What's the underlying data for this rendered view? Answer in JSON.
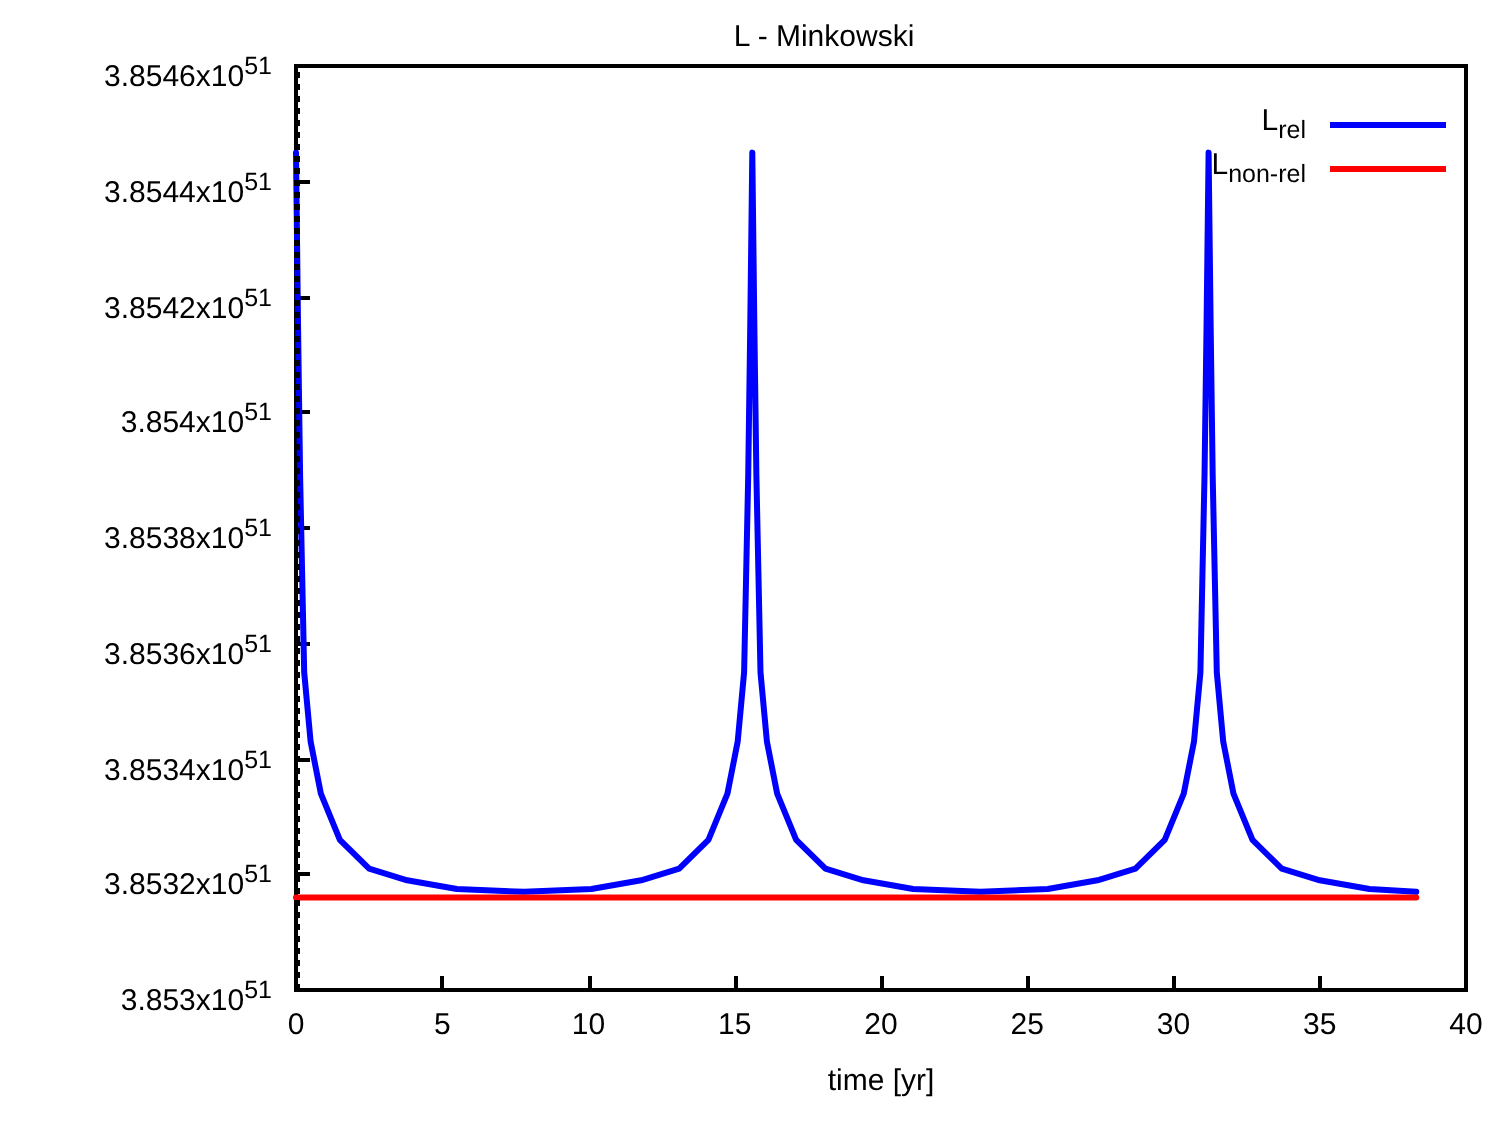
{
  "chart_data": {
    "type": "line",
    "title": "L - Minkowski",
    "xlabel": "time [yr]",
    "xlim": [
      0,
      40
    ],
    "xticks": [
      0,
      5,
      10,
      15,
      20,
      25,
      30,
      35,
      40
    ],
    "ylim": [
      3.853e+51,
      3.8546e+51
    ],
    "yticks": [
      {
        "value": 3.853e+51,
        "label": "3.853x10$^{51}$"
      },
      {
        "value": 3.8532e+51,
        "label": "3.8532x10$^{51}$"
      },
      {
        "value": 3.8534e+51,
        "label": "3.8534x10$^{51}$"
      },
      {
        "value": 3.8536e+51,
        "label": "3.8536x10$^{51}$"
      },
      {
        "value": 3.8538e+51,
        "label": "3.8538x10$^{51}$"
      },
      {
        "value": 3.854e+51,
        "label": "3.854x10$^{51}$"
      },
      {
        "value": 3.8542e+51,
        "label": "3.8542x10$^{51}$"
      },
      {
        "value": 3.8544e+51,
        "label": "3.8544x10$^{51}$"
      },
      {
        "value": 3.8546e+51,
        "label": "3.8546x10$^{51}$"
      }
    ],
    "grid": false,
    "legend": "top right",
    "marker": "none",
    "line_style": "solid",
    "ref_lines": [
      {
        "axis": "x",
        "value": 0,
        "color": "#000000",
        "line_style": "dotted"
      }
    ],
    "series": [
      {
        "name": "L$_{rel}$",
        "color": "#0000ff",
        "x": [
          0,
          0.07,
          0.14,
          0.21,
          0.28,
          0.5,
          0.85,
          1.5,
          2.5,
          3.8,
          5.5,
          7.8,
          10.1,
          11.8,
          13.1,
          14.1,
          14.75,
          15.1,
          15.32,
          15.39,
          15.46,
          15.53,
          15.6,
          15.67,
          15.74,
          15.81,
          15.88,
          16.1,
          16.45,
          17.1,
          18.1,
          19.4,
          21.1,
          23.4,
          25.7,
          27.4,
          28.7,
          29.7,
          30.35,
          30.7,
          30.92,
          30.99,
          31.06,
          31.13,
          31.2,
          31.27,
          31.34,
          31.41,
          31.48,
          31.7,
          32.05,
          32.7,
          33.7,
          35.0,
          36.7,
          38.3
        ],
        "values": [
          3.85445e+51,
          3.85415e+51,
          3.85389e+51,
          3.85372e+51,
          3.85355e+51,
          3.85343e+51,
          3.85334e+51,
          3.85326e+51,
          3.85321e+51,
          3.85319e+51,
          3.853175e+51,
          3.85317e+51,
          3.853175e+51,
          3.85319e+51,
          3.85321e+51,
          3.85326e+51,
          3.85334e+51,
          3.85343e+51,
          3.85355e+51,
          3.85372e+51,
          3.85389e+51,
          3.85415e+51,
          3.85445e+51,
          3.85415e+51,
          3.85389e+51,
          3.85372e+51,
          3.85355e+51,
          3.85343e+51,
          3.85334e+51,
          3.85326e+51,
          3.85321e+51,
          3.85319e+51,
          3.853175e+51,
          3.85317e+51,
          3.853175e+51,
          3.85319e+51,
          3.85321e+51,
          3.85326e+51,
          3.85334e+51,
          3.85343e+51,
          3.85355e+51,
          3.85372e+51,
          3.85389e+51,
          3.85415e+51,
          3.85445e+51,
          3.85415e+51,
          3.85389e+51,
          3.85372e+51,
          3.85355e+51,
          3.85343e+51,
          3.85334e+51,
          3.85326e+51,
          3.85321e+51,
          3.85319e+51,
          3.853175e+51,
          3.85317e+51
        ]
      },
      {
        "name": "L$_{non-rel}$",
        "color": "#ff0000",
        "x": [
          0,
          38.3
        ],
        "values": [
          3.85316e+51,
          3.85316e+51
        ]
      }
    ]
  }
}
